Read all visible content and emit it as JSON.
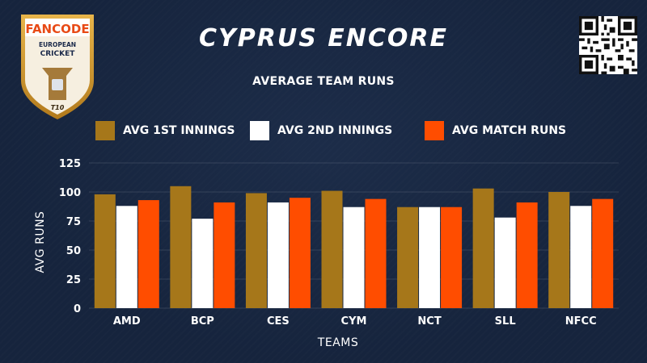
{
  "page": {
    "title": "CYPRUS ENCORE",
    "subtitle": "AVERAGE TEAM RUNS",
    "logo": {
      "brand": "FANCODE",
      "line1": "EUROPEAN",
      "line2": "CRICKET",
      "badge": "T10"
    }
  },
  "chart_data": {
    "type": "bar",
    "title": "AVERAGE TEAM RUNS",
    "xlabel": "TEAMS",
    "ylabel": "AVG RUNS",
    "ylim": [
      0,
      125
    ],
    "yticks": [
      0,
      25,
      50,
      75,
      100,
      125
    ],
    "grid": true,
    "legend_position": "top-center",
    "categories": [
      "AMD",
      "BCP",
      "CES",
      "CYM",
      "NCT",
      "SLL",
      "NFCC"
    ],
    "series": [
      {
        "name": "AVG 1ST INNINGS",
        "color": "#a6771a",
        "values": [
          98,
          105,
          99,
          101,
          87,
          103,
          100
        ]
      },
      {
        "name": "AVG 2ND INNINGS",
        "color": "#ffffff",
        "values": [
          88,
          77,
          91,
          87,
          87,
          78,
          88
        ]
      },
      {
        "name": "AVG MATCH RUNS",
        "color": "#ff4d00",
        "values": [
          93,
          91,
          95,
          94,
          87,
          91,
          94
        ]
      }
    ]
  }
}
